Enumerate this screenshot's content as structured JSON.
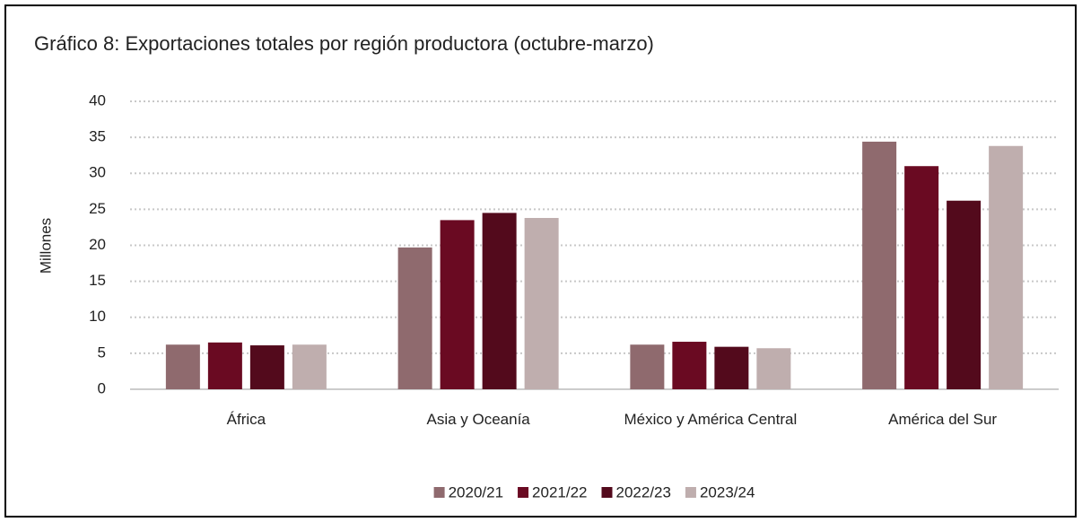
{
  "chart_data": {
    "type": "bar",
    "title": "Gráfico 8: Exportaciones totales por región productora (octubre-marzo)",
    "y_label": "Millones",
    "categories": [
      "África",
      "Asia y Oceanía",
      "México y América Central",
      "América del Sur"
    ],
    "series": [
      {
        "name": "2020/21",
        "color": "#8f6a6e",
        "values": [
          6.2,
          19.7,
          6.2,
          34.4
        ]
      },
      {
        "name": "2021/22",
        "color": "#6a0a22",
        "values": [
          6.5,
          23.5,
          6.6,
          31.0
        ]
      },
      {
        "name": "2022/23",
        "color": "#530a1c",
        "values": [
          6.1,
          24.5,
          5.9,
          26.2
        ]
      },
      {
        "name": "2023/24",
        "color": "#bfaeae",
        "values": [
          6.2,
          23.8,
          5.7,
          33.8
        ]
      }
    ],
    "ylim": [
      0,
      40
    ],
    "yticks": [
      0,
      5,
      10,
      15,
      20,
      25,
      30,
      35,
      40
    ],
    "grid": true,
    "legend": "bottom"
  }
}
